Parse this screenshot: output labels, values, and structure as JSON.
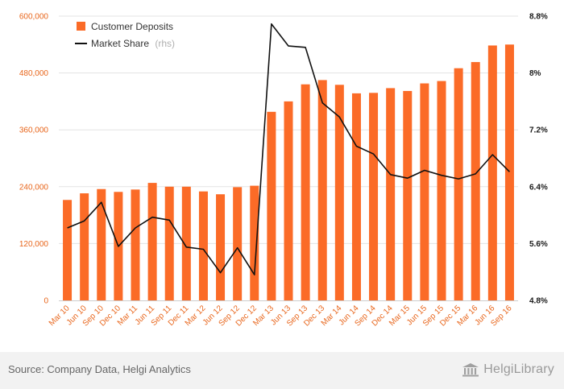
{
  "chart_data": {
    "type": "bar+line",
    "categories": [
      "Mar 10",
      "Jun 10",
      "Sep 10",
      "Dec 10",
      "Mar 11",
      "Jun 11",
      "Sep 11",
      "Dec 11",
      "Mar 12",
      "Jun 12",
      "Sep 12",
      "Dec 12",
      "Mar 13",
      "Jun 13",
      "Sep 13",
      "Dec 13",
      "Mar 14",
      "Jun 14",
      "Sep 14",
      "Dec 14",
      "Mar 15",
      "Jun 15",
      "Sep 15",
      "Dec 15",
      "Mar 16",
      "Jun 16",
      "Sep 16"
    ],
    "series": [
      {
        "name": "Customer Deposits",
        "type": "bar",
        "axis": "left",
        "color": "#fb6b27",
        "values": [
          212000,
          226000,
          235000,
          229000,
          234000,
          248000,
          240000,
          240000,
          230000,
          224000,
          239000,
          242000,
          398000,
          420000,
          456000,
          465000,
          455000,
          437000,
          438000,
          448000,
          442000,
          458000,
          463000,
          490000,
          503000,
          538000,
          540000
        ]
      },
      {
        "name": "Market Share",
        "suffix": "(rhs)",
        "type": "line",
        "axis": "right",
        "color": "#111111",
        "values": [
          5.82,
          5.92,
          6.18,
          5.56,
          5.82,
          5.97,
          5.93,
          5.55,
          5.52,
          5.19,
          5.54,
          5.16,
          8.69,
          8.38,
          8.36,
          7.58,
          7.38,
          6.97,
          6.86,
          6.57,
          6.52,
          6.63,
          6.56,
          6.51,
          6.58,
          6.85,
          6.61
        ]
      }
    ],
    "y_left": {
      "ylim": [
        0,
        600000
      ],
      "ticks": [
        "0",
        "120,000",
        "240,000",
        "360,000",
        "480,000",
        "600,000"
      ],
      "tick_values": [
        0,
        120000,
        240000,
        360000,
        480000,
        600000
      ]
    },
    "y_right": {
      "ylim": [
        4.8,
        8.8
      ],
      "ticks": [
        "4.8%",
        "5.6%",
        "6.4%",
        "7.2%",
        "8%",
        "8.8%"
      ],
      "tick_values": [
        4.8,
        5.6,
        6.4,
        7.2,
        8.0,
        8.8
      ]
    },
    "grid": true,
    "legend_position": "top-left",
    "title": "",
    "xlabel": "",
    "ylabel": ""
  },
  "footer": {
    "source": "Source: Company Data, Helgi Analytics",
    "logo_text": "HelgiLibrary"
  }
}
